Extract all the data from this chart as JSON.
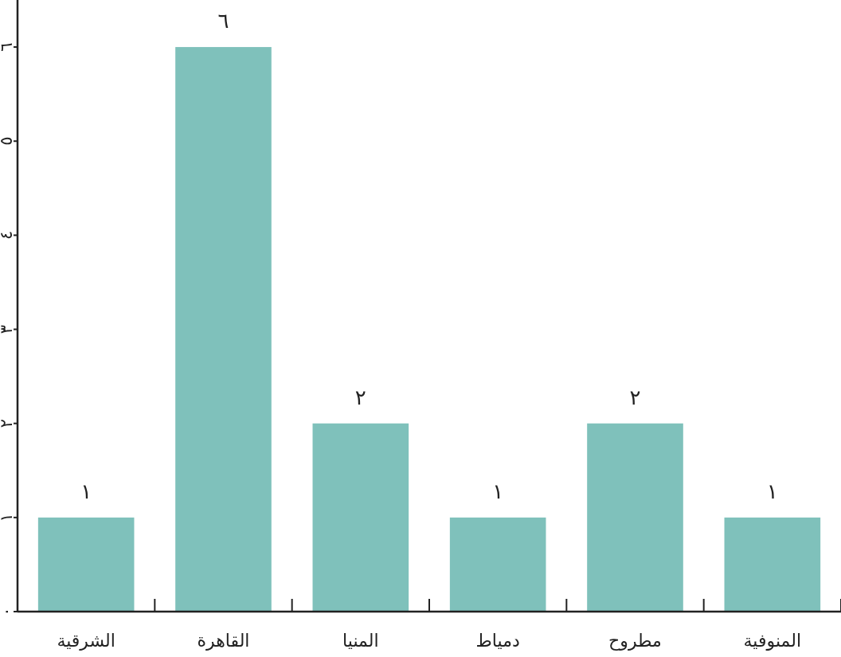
{
  "chart_data": {
    "type": "bar",
    "categories": [
      "الشرقية",
      "القاهرة",
      "المنيا",
      "دمياط",
      "مطروح",
      "المنوفية"
    ],
    "values": [
      1,
      6,
      2,
      1,
      2,
      1
    ],
    "value_labels": [
      "١",
      "٦",
      "٢",
      "١",
      "٢",
      "١"
    ],
    "color": "#7fc1bb",
    "ylim": [
      0,
      6.5
    ],
    "yticks": [
      {
        "value": 0,
        "label": "٠"
      },
      {
        "value": 1,
        "label": "١"
      },
      {
        "value": 2,
        "label": "٢"
      },
      {
        "value": 3,
        "label": "٣"
      },
      {
        "value": 4,
        "label": "٤"
      },
      {
        "value": 5,
        "label": "٥"
      },
      {
        "value": 6,
        "label": "٦"
      }
    ],
    "grid": false
  }
}
